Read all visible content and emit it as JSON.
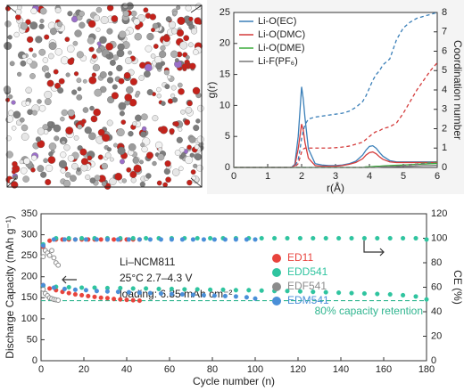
{
  "chart_data": [
    {
      "type": "line",
      "x_label": "r(Å)",
      "y_label": "g(r)",
      "y2_label": "Coordination number",
      "x": [
        0,
        1.5,
        1.7,
        1.8,
        1.9,
        1.95,
        2.0,
        2.05,
        2.1,
        2.2,
        2.4,
        2.6,
        2.8,
        3.0,
        3.2,
        3.4,
        3.6,
        3.8,
        3.9,
        4.0,
        4.1,
        4.2,
        4.3,
        4.4,
        4.6,
        4.8,
        5.0,
        5.2,
        5.4,
        5.6,
        5.8,
        6.0
      ],
      "xlim": [
        0,
        6
      ],
      "xticks": [
        0,
        1,
        2,
        3,
        4,
        5,
        6
      ],
      "ylim": [
        0,
        25
      ],
      "yticks": [
        0,
        5,
        10,
        15,
        20,
        25
      ],
      "y2lim": [
        0,
        8
      ],
      "y2ticks": [
        0,
        1,
        2,
        3,
        4,
        5,
        6,
        7,
        8
      ],
      "legend": "upper left",
      "series": [
        {
          "name": "Li-O(EC)",
          "color": "#3a7fb8",
          "values": [
            0,
            0,
            0,
            0.5,
            5,
            9,
            13,
            11,
            8,
            3,
            0.6,
            0.4,
            0.3,
            0.3,
            0.4,
            0.6,
            1,
            2,
            2.8,
            3.4,
            3.5,
            3.1,
            2.4,
            1.8,
            1.1,
            0.9,
            0.9,
            0.9,
            0.9,
            0.9,
            0.9,
            0.9
          ]
        },
        {
          "name": "Li-O(DMC)",
          "color": "#d43b3b",
          "values": [
            0,
            0,
            0,
            0.3,
            3,
            5,
            7,
            6,
            4,
            1.5,
            0.3,
            0.2,
            0.2,
            0.2,
            0.3,
            0.5,
            0.8,
            1.4,
            2,
            2.4,
            2.5,
            2.2,
            1.7,
            1.3,
            0.9,
            0.8,
            0.8,
            0.8,
            0.8,
            0.8,
            0.8,
            0.8
          ]
        },
        {
          "name": "Li-O(DME)",
          "color": "#3aaa3a",
          "values": [
            0,
            0,
            0,
            0,
            0,
            0,
            0,
            0,
            0,
            0,
            0,
            0,
            0,
            0,
            0,
            0,
            0,
            0,
            0.1,
            0.1,
            0.15,
            0.2,
            0.2,
            0.25,
            0.3,
            0.35,
            0.4,
            0.45,
            0.5,
            0.55,
            0.6,
            0.65
          ]
        },
        {
          "name": "Li-F(PF₆)",
          "color": "#777777",
          "values": [
            0,
            0,
            0,
            0,
            0,
            0,
            0,
            0,
            0,
            0,
            0,
            0,
            0,
            0,
            0,
            0,
            0,
            0,
            0,
            0,
            0,
            0,
            0.05,
            0.1,
            0.1,
            0.15,
            0.2,
            0.2,
            0.25,
            0.3,
            0.3,
            0.35
          ]
        },
        {
          "name": "Li-O(EC)",
          "color": "#3a7fb8",
          "axis": "y2",
          "values": [
            0,
            0,
            0,
            0.05,
            0.4,
            0.9,
            1.5,
            1.9,
            2.2,
            2.5,
            2.6,
            2.65,
            2.7,
            2.75,
            2.8,
            2.9,
            3.1,
            3.4,
            3.7,
            4.1,
            4.5,
            4.8,
            5,
            5.3,
            5.6,
            6.6,
            7.2,
            7.5,
            7.7,
            7.8,
            7.9,
            8
          ]
        },
        {
          "name": "Li-O(DMC)",
          "color": "#d43b3b",
          "axis": "y2",
          "values": [
            0,
            0,
            0,
            0.02,
            0.2,
            0.5,
            0.8,
            0.95,
            1.0,
            1.0,
            1.0,
            1.0,
            1.0,
            1.02,
            1.05,
            1.1,
            1.2,
            1.3,
            1.45,
            1.6,
            1.75,
            1.85,
            1.9,
            2.0,
            2.1,
            2.3,
            2.8,
            3.4,
            4.0,
            4.5,
            5.0,
            5.4
          ]
        },
        {
          "name": "Li-O(DME)",
          "color": "#3aaa3a",
          "axis": "y2",
          "values": [
            0,
            0,
            0,
            0,
            0,
            0,
            0,
            0,
            0,
            0,
            0,
            0,
            0,
            0,
            0,
            0,
            0,
            0,
            0,
            0,
            0.02,
            0.03,
            0.04,
            0.05,
            0.07,
            0.1,
            0.12,
            0.15,
            0.18,
            0.22,
            0.26,
            0.3
          ]
        },
        {
          "name": "Li-F(PF₆)",
          "color": "#777777",
          "axis": "y2",
          "values": [
            0,
            0,
            0,
            0,
            0,
            0,
            0,
            0,
            0,
            0,
            0,
            0,
            0,
            0,
            0,
            0,
            0,
            0,
            0,
            0,
            0,
            0,
            0.02,
            0.03,
            0.05,
            0.07,
            0.1,
            0.13,
            0.16,
            0.2,
            0.24,
            0.3
          ]
        }
      ]
    },
    {
      "type": "scatter",
      "x_label": "Cycle number (n)",
      "y_label": "Discharge Capacity (mAh g⁻¹)",
      "y2_label": "CE (%)",
      "xlim": [
        0,
        180
      ],
      "xticks": [
        0,
        20,
        40,
        60,
        80,
        100,
        120,
        140,
        160,
        180
      ],
      "ylim": [
        0,
        350
      ],
      "yticks": [
        0,
        50,
        100,
        150,
        200,
        250,
        300,
        350
      ],
      "y2lim": [
        0,
        120
      ],
      "y2ticks": [
        0,
        20,
        40,
        60,
        80,
        100,
        120
      ],
      "legend": "center right",
      "annotations": [
        "Li–NCM811",
        "25°C  2.7–4.3 V",
        "loading: 6.35 mAh cm⁻²"
      ],
      "hline": 143,
      "hline_label": "80% capacity retention",
      "series": [
        {
          "name": "ED11",
          "color": "#e8433c",
          "marker": "filled",
          "x": [
            1,
            4,
            7,
            10,
            13,
            16,
            19,
            22,
            25,
            28,
            31,
            34,
            37,
            40,
            43,
            46
          ],
          "values": [
            180,
            172,
            168,
            164,
            161,
            158,
            156,
            154,
            152,
            150,
            149,
            147,
            146,
            145,
            144,
            143
          ]
        },
        {
          "name": "EDD541",
          "color": "#2fc49f",
          "marker": "filled",
          "x": [
            1,
            7,
            13,
            19,
            25,
            31,
            37,
            43,
            49,
            55,
            61,
            67,
            73,
            79,
            85,
            91,
            97,
            103,
            109,
            115,
            121,
            127,
            133,
            139,
            145,
            151,
            157,
            163,
            169,
            175,
            180
          ],
          "values": [
            178,
            176,
            175,
            174,
            174,
            173,
            173,
            172,
            172,
            171,
            171,
            170,
            170,
            169,
            169,
            168,
            168,
            167,
            166,
            166,
            165,
            164,
            163,
            162,
            161,
            160,
            159,
            158,
            156,
            153,
            146
          ]
        },
        {
          "name": "EDF541",
          "color": "#8c8c8c",
          "marker": "open",
          "x": [
            1,
            2,
            3,
            4,
            5,
            6,
            7,
            8
          ],
          "values": [
            170,
            160,
            155,
            150,
            148,
            146,
            145,
            144
          ]
        },
        {
          "name": "EDM541",
          "color": "#4a8fd8",
          "marker": "filled",
          "x": [
            1,
            6,
            11,
            16,
            21,
            26,
            31,
            36,
            41,
            46,
            51,
            56,
            61,
            66,
            71,
            76,
            81,
            86,
            91,
            96,
            100
          ],
          "values": [
            180,
            174,
            171,
            169,
            168,
            166,
            165,
            164,
            163,
            162,
            161,
            160,
            159,
            158,
            157,
            156,
            155,
            154,
            153,
            151,
            148
          ]
        },
        {
          "name": "ED11",
          "color": "#e8433c",
          "marker": "filled",
          "axis": "y2",
          "x": [
            1,
            4,
            7,
            10,
            13,
            16,
            19,
            22,
            25,
            28,
            31,
            34,
            37,
            40,
            43,
            46
          ],
          "values": [
            93,
            98,
            99,
            99,
            99,
            99,
            99,
            99,
            99,
            99,
            99,
            99,
            99,
            99,
            99,
            99
          ]
        },
        {
          "name": "EDD541",
          "color": "#2fc49f",
          "marker": "filled",
          "axis": "y2",
          "x": [
            1,
            7,
            13,
            19,
            25,
            31,
            37,
            43,
            49,
            55,
            61,
            67,
            73,
            79,
            85,
            91,
            97,
            103,
            109,
            115,
            121,
            127,
            133,
            139,
            145,
            151,
            157,
            163,
            169,
            175,
            180
          ],
          "values": [
            95,
            100,
            100,
            100,
            100,
            100,
            100,
            100,
            100,
            100,
            100,
            100,
            100,
            100,
            100,
            100,
            100,
            100,
            100,
            100,
            100,
            100,
            100,
            100,
            100,
            100,
            100,
            100,
            100,
            100,
            99
          ]
        },
        {
          "name": "EDF541",
          "color": "#8c8c8c",
          "marker": "open",
          "axis": "y2",
          "x": [
            1,
            2,
            3,
            4,
            5,
            6,
            7,
            8
          ],
          "values": [
            85,
            90,
            88,
            86,
            90,
            84,
            80,
            78
          ]
        },
        {
          "name": "EDM541",
          "color": "#4a8fd8",
          "marker": "filled",
          "axis": "y2",
          "x": [
            1,
            6,
            11,
            16,
            21,
            26,
            31,
            36,
            41,
            46,
            51,
            56,
            61,
            66,
            71,
            76,
            81,
            86,
            91,
            96,
            100
          ],
          "values": [
            94,
            99,
            99,
            99,
            99,
            99,
            99,
            99,
            99,
            99,
            99,
            99,
            99,
            99,
            99,
            99,
            99,
            99,
            99,
            99,
            99
          ]
        }
      ]
    }
  ]
}
